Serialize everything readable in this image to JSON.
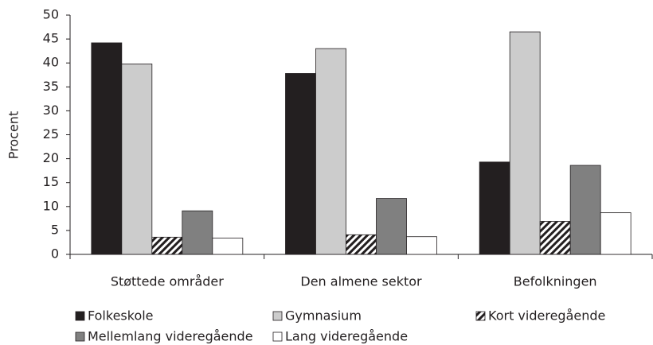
{
  "chart_data": {
    "type": "bar",
    "y_label": "Procent",
    "categories": [
      "Støttede områder",
      "Den almene sektor",
      "Befolkningen"
    ],
    "series": [
      {
        "name": "Folkeskole",
        "color": "#231f20",
        "values": [
          44.2,
          37.8,
          19.3
        ]
      },
      {
        "name": "Gymnasium",
        "color": "#cccccc",
        "values": [
          39.8,
          43.0,
          46.5
        ]
      },
      {
        "name": "Kort videregående",
        "color": "#231f20",
        "pattern": "hatch",
        "values": [
          3.6,
          4.1,
          6.9
        ]
      },
      {
        "name": "Mellemlang videregående",
        "color": "#808080",
        "values": [
          9.1,
          11.7,
          18.6
        ]
      },
      {
        "name": "Lang videregående",
        "color": "#ffffff",
        "values": [
          3.4,
          3.7,
          8.7
        ]
      }
    ],
    "ylim": [
      0,
      50
    ],
    "yticks": [
      0,
      5,
      10,
      15,
      20,
      25,
      30,
      35,
      40,
      45,
      50
    ],
    "grid": false
  }
}
